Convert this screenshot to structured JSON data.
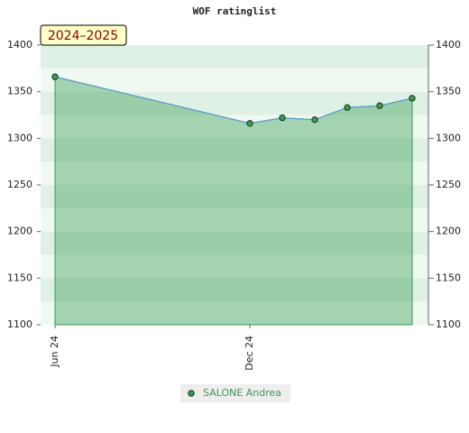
{
  "chart_data": {
    "type": "line",
    "title": "WOF ratinglist",
    "annotation": "2024–2025",
    "x": [
      "2024-06",
      "2024-12",
      "2025-01",
      "2025-02",
      "2025-03",
      "2025-04",
      "2025-05"
    ],
    "xticks": [
      {
        "value": "2024-06",
        "label": "Jun 24"
      },
      {
        "value": "2024-12",
        "label": "Dec 24"
      }
    ],
    "series": [
      {
        "name": "SALONE Andrea",
        "color": "#3a9a50",
        "line_color": "#5b9bd5",
        "values": [
          1366,
          1316,
          1322,
          1320,
          1333,
          1335,
          1343
        ]
      }
    ],
    "ylim": [
      1100,
      1400
    ],
    "yticks": [
      1100,
      1150,
      1200,
      1250,
      1300,
      1350,
      1400
    ]
  }
}
